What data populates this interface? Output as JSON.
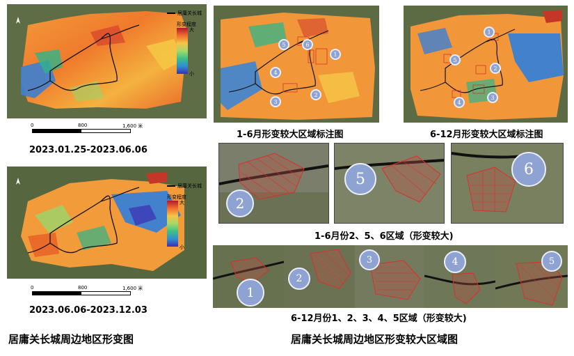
{
  "left_maps": [
    {
      "date_range": "2023.01.25-2023.06.06",
      "legend": {
        "line_label": "居庸关长城",
        "bar_title": "形变程度",
        "high": "大",
        "low": "小"
      },
      "scale": {
        "zero": "0",
        "mid": "800",
        "max": "1,600 米"
      }
    },
    {
      "date_range": "2023.06.06-2023.12.03",
      "legend": {
        "line_label": "居庸关长城",
        "bar_title": "形变程度",
        "high": "大",
        "low": "小"
      },
      "scale": {
        "zero": "0",
        "mid": "800",
        "max": "1,600 米"
      }
    }
  ],
  "left_title": "居庸关长城周边地区形变图",
  "right_title": "居庸关长城周边地区形变较大区域图",
  "annotated_maps": [
    {
      "caption": "1-6月形变较大区域标注图",
      "markers": [
        "1",
        "2",
        "3",
        "4",
        "5",
        "6"
      ]
    },
    {
      "caption": "6-12月形变较大区域标注图",
      "markers": [
        "1",
        "2",
        "3",
        "4",
        "5"
      ]
    }
  ],
  "zoom_row_1": {
    "caption": "1-6月份2、5、6区域（形变较大)",
    "badges": [
      "2",
      "5",
      "6"
    ]
  },
  "zoom_row_2": {
    "caption": "6-12月份1、2、3、4、5区域（形变较大)",
    "badges": [
      "1",
      "2",
      "3",
      "4",
      "5"
    ]
  },
  "colors": {
    "high": "#b2182b",
    "mid": "#f6c445",
    "low": "#3b2fb0",
    "badge": "#8fa3d3",
    "hatch": "#d9312b"
  }
}
